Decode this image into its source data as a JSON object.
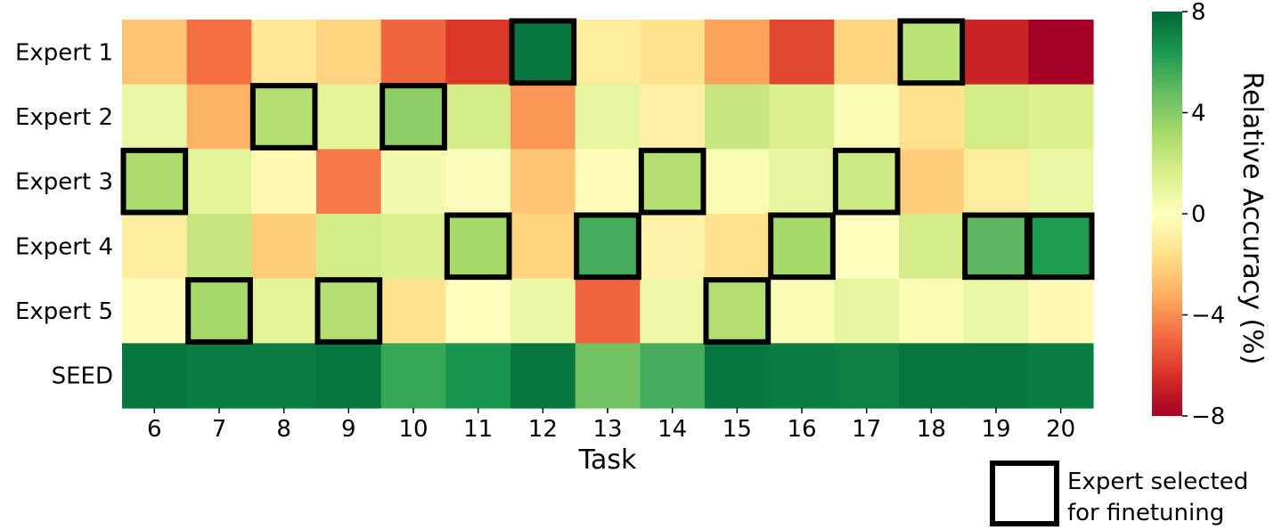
{
  "chart_data": {
    "type": "heatmap",
    "xlabel": "Task",
    "ylabel": "",
    "x_categories": [
      "6",
      "7",
      "8",
      "9",
      "10",
      "11",
      "12",
      "13",
      "14",
      "15",
      "16",
      "17",
      "18",
      "19",
      "20"
    ],
    "y_categories": [
      "Expert 1",
      "Expert 2",
      "Expert 3",
      "Expert 4",
      "Expert 5",
      "SEED"
    ],
    "values": [
      [
        -2.5,
        -4.8,
        -1.2,
        -2.0,
        -5.0,
        -6.2,
        7.5,
        -1.0,
        -1.5,
        -3.5,
        -5.8,
        -2.0,
        2.5,
        -6.8,
        -8.0
      ],
      [
        0.8,
        -3.0,
        2.8,
        1.2,
        3.8,
        1.8,
        -3.8,
        1.0,
        -0.8,
        2.2,
        1.5,
        0.3,
        -1.5,
        1.8,
        1.5
      ],
      [
        3.0,
        1.2,
        -0.3,
        -4.5,
        0.5,
        0.2,
        -2.5,
        -0.2,
        2.8,
        0.3,
        1.0,
        2.0,
        -2.2,
        -1.0,
        0.8
      ],
      [
        -1.0,
        2.2,
        -2.2,
        1.8,
        1.5,
        3.2,
        -2.0,
        5.5,
        -0.7,
        -1.5,
        3.2,
        0.0,
        1.8,
        5.0,
        6.3
      ],
      [
        -0.2,
        3.2,
        1.2,
        2.8,
        -1.5,
        0.0,
        0.8,
        -5.0,
        0.7,
        2.8,
        0.3,
        1.0,
        0.3,
        0.8,
        -0.3
      ],
      [
        7.5,
        7.3,
        7.3,
        7.5,
        5.8,
        6.5,
        7.5,
        4.5,
        5.5,
        7.5,
        7.3,
        7.2,
        7.5,
        7.5,
        7.3
      ]
    ],
    "selected": [
      {
        "row": 0,
        "col": 6
      },
      {
        "row": 0,
        "col": 12
      },
      {
        "row": 1,
        "col": 2
      },
      {
        "row": 1,
        "col": 4
      },
      {
        "row": 2,
        "col": 0
      },
      {
        "row": 2,
        "col": 8
      },
      {
        "row": 2,
        "col": 11
      },
      {
        "row": 3,
        "col": 5
      },
      {
        "row": 3,
        "col": 7
      },
      {
        "row": 3,
        "col": 10
      },
      {
        "row": 3,
        "col": 13
      },
      {
        "row": 3,
        "col": 14
      },
      {
        "row": 4,
        "col": 1
      },
      {
        "row": 4,
        "col": 3
      },
      {
        "row": 4,
        "col": 9
      }
    ],
    "colorbar": {
      "label": "Relative Accuracy (%)",
      "min": -8,
      "max": 8,
      "ticks": [
        8,
        4,
        0,
        -4,
        -8
      ],
      "tick_labels": [
        "8",
        "4",
        "0",
        "−4",
        "−8"
      ],
      "colormap": "RdYlGn"
    },
    "legend": {
      "line1": "Expert selected",
      "line2": "for finetuning",
      "placement": "bottom-right"
    },
    "grid": false
  }
}
